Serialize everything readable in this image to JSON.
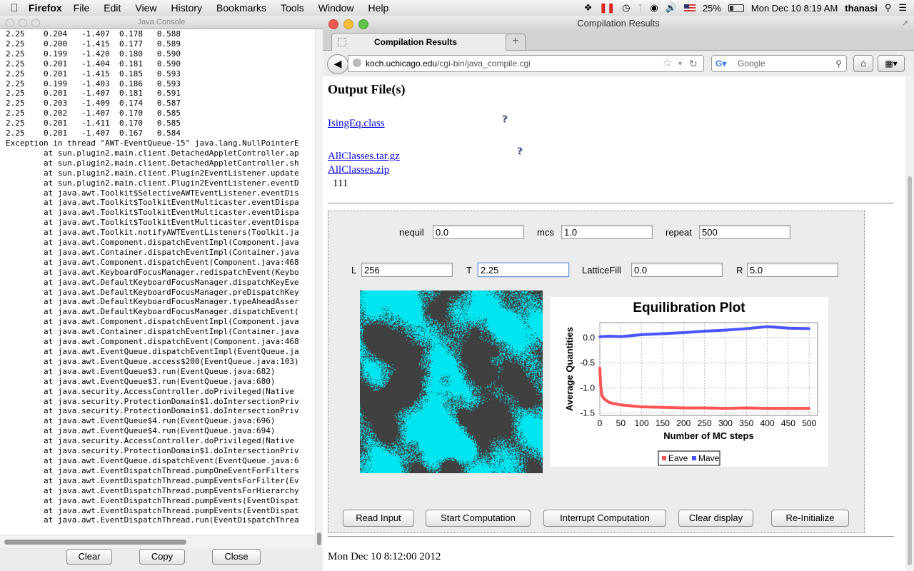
{
  "menubar": {
    "app_name": "Firefox",
    "menus": [
      "File",
      "Edit",
      "View",
      "History",
      "Bookmarks",
      "Tools",
      "Window",
      "Help"
    ],
    "battery": "25%",
    "clock": "Mon Dec 10  8:19 AM",
    "user": "thanasi"
  },
  "console": {
    "title": "Java Console",
    "lines": [
      "2.25    0.204   -1.407  0.178   0.588",
      "2.25    0.200   -1.415  0.177   0.589",
      "2.25    0.199   -1.420  0.180   0.590",
      "2.25    0.201   -1.404  0.181   0.590",
      "2.25    0.201   -1.415  0.185   0.593",
      "2.25    0.199   -1.403  0.186   0.593",
      "2.25    0.201   -1.407  0.181   0.591",
      "2.25    0.203   -1.409  0.174   0.587",
      "2.25    0.202   -1.407  0.170   0.585",
      "2.25    0.201   -1.411  0.170   0.585",
      "2.25    0.201   -1.407  0.167   0.584",
      "Exception in thread \"AWT-EventQueue-15\" java.lang.NullPointerE",
      "        at sun.plugin2.main.client.DetachedAppletController.ap",
      "        at sun.plugin2.main.client.DetachedAppletController.sh",
      "        at sun.plugin2.main.client.Plugin2EventListener.update",
      "        at sun.plugin2.main.client.Plugin2EventListener.eventD",
      "        at java.awt.Toolkit$SelectiveAWTEventListener.eventDis",
      "        at java.awt.Toolkit$ToolkitEventMulticaster.eventDispa",
      "        at java.awt.Toolkit$ToolkitEventMulticaster.eventDispa",
      "        at java.awt.Toolkit$ToolkitEventMulticaster.eventDispa",
      "        at java.awt.Toolkit.notifyAWTEventListeners(Toolkit.ja",
      "        at java.awt.Component.dispatchEventImpl(Component.java",
      "        at java.awt.Container.dispatchEventImpl(Container.java",
      "        at java.awt.Component.dispatchEvent(Component.java:468",
      "        at java.awt.KeyboardFocusManager.redispatchEvent(Keybo",
      "        at java.awt.DefaultKeyboardFocusManager.dispatchKeyEve",
      "        at java.awt.DefaultKeyboardFocusManager.preDispatchKey",
      "        at java.awt.DefaultKeyboardFocusManager.typeAheadAsser",
      "        at java.awt.DefaultKeyboardFocusManager.dispatchEvent(",
      "        at java.awt.Component.dispatchEventImpl(Component.java",
      "        at java.awt.Container.dispatchEventImpl(Container.java",
      "        at java.awt.Component.dispatchEvent(Component.java:468",
      "        at java.awt.EventQueue.dispatchEventImpl(EventQueue.ja",
      "        at java.awt.EventQueue.access$200(EventQueue.java:103)",
      "        at java.awt.EventQueue$3.run(EventQueue.java:682)",
      "        at java.awt.EventQueue$3.run(EventQueue.java:680)",
      "        at java.security.AccessController.doPrivileged(Native ",
      "        at java.security.ProtectionDomain$1.doIntersectionPriv",
      "        at java.security.ProtectionDomain$1.doIntersectionPriv",
      "        at java.awt.EventQueue$4.run(EventQueue.java:696)",
      "        at java.awt.EventQueue$4.run(EventQueue.java:694)",
      "        at java.security.AccessController.doPrivileged(Native ",
      "        at java.security.ProtectionDomain$1.doIntersectionPriv",
      "        at java.awt.EventQueue.dispatchEvent(EventQueue.java:6",
      "        at java.awt.EventDispatchThread.pumpOneEventForFilters",
      "        at java.awt.EventDispatchThread.pumpEventsForFilter(Ev",
      "        at java.awt.EventDispatchThread.pumpEventsForHierarchy",
      "        at java.awt.EventDispatchThread.pumpEvents(EventDispat",
      "        at java.awt.EventDispatchThread.pumpEvents(EventDispat",
      "        at java.awt.EventDispatchThread.run(EventDispatchThrea"
    ],
    "buttons": {
      "clear": "Clear",
      "copy": "Copy",
      "close": "Close"
    }
  },
  "browser": {
    "window_title": "Compilation Results",
    "tab_title": "Compilation Results",
    "url_host": "koch.uchicago.edu",
    "url_path": "/cgi-bin/java_compile.cgi",
    "search_placeholder": "Google"
  },
  "page": {
    "heading": "Output File(s)",
    "links": [
      "IsingEq.class",
      "AllClasses.tar.gz",
      "AllClasses.zip"
    ],
    "help_glyph": "?",
    "number_text": "111",
    "footer_date": "Mon Dec 10 8:12:00 2012"
  },
  "applet": {
    "fields": {
      "nequil": {
        "label": "nequil",
        "value": "0.0"
      },
      "mcs": {
        "label": "mcs",
        "value": "1.0"
      },
      "repeat": {
        "label": "repeat",
        "value": "500"
      },
      "L": {
        "label": "L",
        "value": "256"
      },
      "T": {
        "label": "T",
        "value": "2.25"
      },
      "lattice_fill": {
        "label": "LatticeFill",
        "value": "0.0"
      },
      "R": {
        "label": "R",
        "value": "5.0"
      }
    },
    "lattice_colors": {
      "up": "#00e5f0",
      "down": "#404040"
    },
    "buttons": {
      "read_input": "Read Input",
      "start": "Start Computation",
      "interrupt": "Interrupt Computation",
      "clear": "Clear display",
      "reinit": "Re-Initialize"
    }
  },
  "chart_data": {
    "type": "line",
    "title": "Equilibration Plot",
    "xlabel": "Number of MC steps",
    "ylabel": "Average Quantities",
    "xlim": [
      0,
      520
    ],
    "ylim": [
      -1.55,
      0.3
    ],
    "x_ticks": [
      0,
      50,
      100,
      150,
      200,
      250,
      300,
      350,
      400,
      450,
      500
    ],
    "y_ticks": [
      0.0,
      -0.5,
      -1.0,
      -1.5
    ],
    "grid": true,
    "legend": "bottom-center",
    "series": [
      {
        "name": "Eave",
        "color": "#ff5555",
        "x": [
          0,
          2,
          5,
          10,
          20,
          30,
          50,
          75,
          100,
          150,
          200,
          250,
          300,
          350,
          400,
          450,
          500
        ],
        "values": [
          -0.6,
          -0.95,
          -1.15,
          -1.22,
          -1.28,
          -1.31,
          -1.34,
          -1.36,
          -1.38,
          -1.39,
          -1.4,
          -1.4,
          -1.41,
          -1.4,
          -1.41,
          -1.41,
          -1.41
        ]
      },
      {
        "name": "Mave",
        "color": "#4a55ff",
        "x": [
          0,
          25,
          50,
          75,
          100,
          150,
          200,
          250,
          300,
          350,
          400,
          450,
          500
        ],
        "values": [
          0.02,
          0.03,
          0.02,
          0.04,
          0.06,
          0.08,
          0.1,
          0.13,
          0.15,
          0.18,
          0.22,
          0.19,
          0.18
        ]
      }
    ]
  }
}
